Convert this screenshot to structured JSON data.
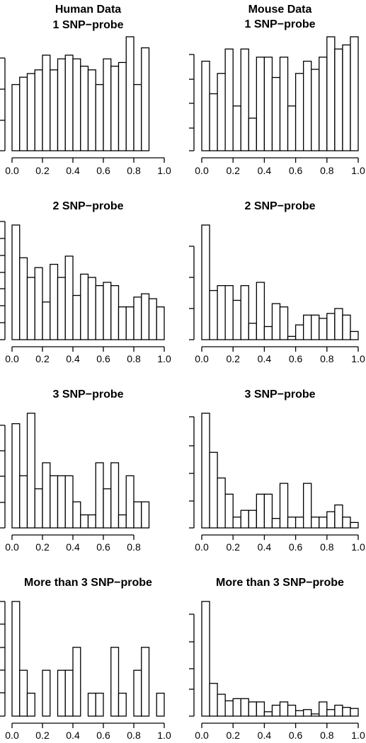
{
  "chart_data": [
    {
      "type": "bar",
      "title": [
        "Human Data",
        "1 SNP−probe"
      ],
      "xlim": [
        0,
        1
      ],
      "ylim": [
        0,
        15.5
      ],
      "xticks": [
        "0.0",
        "0.2",
        "0.4",
        "0.6",
        "0.8",
        "1.0"
      ],
      "bin_width": 0.05,
      "values": [
        9,
        10,
        10.5,
        11,
        13,
        11,
        12.5,
        13,
        12.5,
        11.5,
        11,
        9,
        12.5,
        11.5,
        12,
        15.5,
        9,
        14
      ]
    },
    {
      "type": "bar",
      "title": [
        "Mouse Data",
        "1 SNP−probe"
      ],
      "xlim": [
        0,
        1
      ],
      "ylim": [
        0,
        14
      ],
      "xticks": [
        "0.0",
        "0.2",
        "0.4",
        "0.6",
        "0.8",
        "1.0"
      ],
      "bin_width": 0.05,
      "values": [
        11,
        7,
        9.5,
        12.5,
        5.5,
        12.5,
        4,
        11.5,
        11.5,
        9,
        11.5,
        5.5,
        9.5,
        11,
        10,
        11.5,
        14,
        12.5,
        13,
        14
      ]
    },
    {
      "type": "bar",
      "title": [
        "2 SNP−probe"
      ],
      "xlim": [
        0,
        1
      ],
      "ylim": [
        0,
        7
      ],
      "xticks": [
        "0.0",
        "0.2",
        "0.4",
        "0.6",
        "0.8",
        "1.0"
      ],
      "bin_width": 0.05,
      "values": [
        7,
        5,
        3.8,
        4.4,
        2.3,
        4.6,
        3.8,
        5.1,
        2.7,
        4,
        3.8,
        3.3,
        3.5,
        3.3,
        2,
        2,
        2.6,
        2.8,
        2.5,
        2
      ]
    },
    {
      "type": "bar",
      "title": [
        "2 SNP−probe"
      ],
      "xlim": [
        0,
        1
      ],
      "ylim": [
        0,
        7
      ],
      "xticks": [
        "0.0",
        "0.2",
        "0.4",
        "0.6",
        "0.8",
        "1.0"
      ],
      "bin_width": 0.05,
      "values": [
        7,
        3,
        3.3,
        3.3,
        2.4,
        3.3,
        1,
        3.5,
        0.8,
        2.2,
        2,
        0.2,
        0.9,
        1.5,
        1.5,
        1.3,
        1.6,
        1.9,
        1.5,
        0.5
      ]
    },
    {
      "type": "bar",
      "title": [
        "3 SNP−probe"
      ],
      "xlim": [
        0,
        1
      ],
      "ylim": [
        0,
        4.4
      ],
      "xticks": [
        "0.0",
        "0.2",
        "0.4",
        "0.6",
        "0.8"
      ],
      "bin_width": 0.05,
      "values": [
        4,
        2,
        4.4,
        1.5,
        2.5,
        2,
        2,
        2,
        1,
        0.5,
        0.5,
        2.5,
        1.5,
        2.5,
        0.5,
        2,
        1,
        1
      ]
    },
    {
      "type": "bar",
      "title": [
        "3 SNP−probe"
      ],
      "xlim": [
        0,
        1
      ],
      "ylim": [
        0,
        8.5
      ],
      "xticks": [
        "0.0",
        "0.2",
        "0.4",
        "0.6",
        "0.8",
        "1.0"
      ],
      "bin_width": 0.05,
      "values": [
        8.5,
        5.6,
        3.7,
        2.5,
        0.8,
        1.3,
        1.3,
        2.5,
        2.5,
        0.7,
        3.3,
        0.8,
        0.8,
        3.3,
        0.8,
        0.8,
        1.2,
        1.7,
        0.8,
        0.4
      ]
    },
    {
      "type": "bar",
      "title": [
        "More than 3 SNP−probe"
      ],
      "xlim": [
        0,
        1
      ],
      "ylim": [
        0,
        5
      ],
      "xticks": [
        "0.0",
        "0.2",
        "0.4",
        "0.6",
        "0.8",
        "1.0"
      ],
      "bin_width": 0.05,
      "values": [
        5,
        2,
        1,
        0,
        2,
        0,
        2,
        2,
        3,
        0,
        1,
        1,
        0,
        3,
        1,
        0,
        2,
        3,
        0,
        1
      ]
    },
    {
      "type": "bar",
      "title": [
        "More than 3 SNP−probe"
      ],
      "xlim": [
        0,
        1
      ],
      "ylim": [
        0,
        10.5
      ],
      "xticks": [
        "0.0",
        "0.2",
        "0.4",
        "0.6",
        "0.8",
        "1.0"
      ],
      "bin_width": 0.05,
      "values": [
        10.5,
        3,
        2,
        1.4,
        1.6,
        1.6,
        1.3,
        1.3,
        0.4,
        1,
        1.3,
        1,
        0.5,
        0.6,
        0.2,
        1.3,
        0.6,
        1,
        0.8,
        0.7
      ]
    }
  ]
}
